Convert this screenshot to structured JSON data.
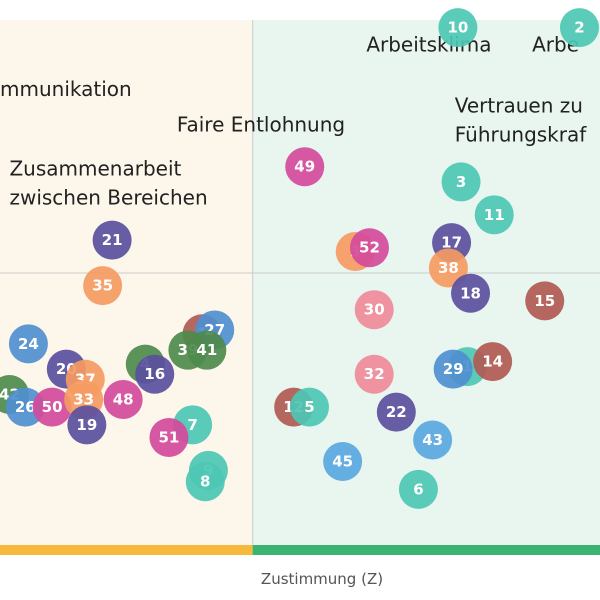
{
  "chart_data": {
    "type": "scatter",
    "title": "",
    "xlabel": "Zustimmung (Z)",
    "ylabel": "",
    "grid": true,
    "xlim": [
      -9,
      29
    ],
    "ylim": [
      -21.5,
      20
    ],
    "x_divider": 7,
    "y_divider": 0,
    "zones": [
      {
        "from": -9,
        "to": 7,
        "fill": "#fdf6ea",
        "bar": "#f6b93b"
      },
      {
        "from": 7,
        "to": 29,
        "fill": "#e8f6ef",
        "bar": "#3cb371"
      }
    ],
    "colors": {
      "teal": "#4dc7b4",
      "purple": "#5a4f9e",
      "orange": "#f59a62",
      "pink": "#d44a9b",
      "lightpink": "#ee8a98",
      "brown": "#b05a52",
      "blue": "#4f8fd0",
      "green": "#4e8a4c",
      "skyblue": "#59a7df",
      "skyblue2": "#6aa2e4"
    },
    "points": [
      {
        "id": "10",
        "x": 20,
        "y": 19.4,
        "color": "teal"
      },
      {
        "id": "2",
        "x": 27.7,
        "y": 19.4,
        "color": "teal"
      },
      {
        "id": "49",
        "x": 10.3,
        "y": 8.4,
        "color": "pink"
      },
      {
        "id": "3",
        "x": 20.2,
        "y": 7.2,
        "color": "teal"
      },
      {
        "id": "11",
        "x": 22.3,
        "y": 4.6,
        "color": "teal"
      },
      {
        "id": "21",
        "x": -1.9,
        "y": 2.6,
        "color": "purple"
      },
      {
        "id": "17",
        "x": 19.6,
        "y": 2.4,
        "color": "purple"
      },
      {
        "id": "3",
        "x": 13.5,
        "y": 1.7,
        "color": "orange"
      },
      {
        "id": "52",
        "x": 14.4,
        "y": 2.0,
        "color": "pink"
      },
      {
        "id": "38",
        "x": 19.4,
        "y": 0.4,
        "color": "orange"
      },
      {
        "id": "35",
        "x": -2.5,
        "y": -1.0,
        "color": "orange"
      },
      {
        "id": "18",
        "x": 20.8,
        "y": -1.6,
        "color": "purple"
      },
      {
        "id": "15",
        "x": 25.5,
        "y": -2.2,
        "color": "brown"
      },
      {
        "id": "30",
        "x": 14.7,
        "y": -2.9,
        "color": "lightpink"
      },
      {
        "id": "1",
        "x": 3.8,
        "y": -4.8,
        "color": "brown"
      },
      {
        "id": "27",
        "x": 4.6,
        "y": -4.5,
        "color": "blue"
      },
      {
        "id": "24",
        "x": -7.2,
        "y": -5.6,
        "color": "blue"
      },
      {
        "id": "39",
        "x": 2.9,
        "y": -6.1,
        "color": "green"
      },
      {
        "id": "41",
        "x": 4.1,
        "y": -6.1,
        "color": "green"
      },
      {
        "id": "20",
        "x": -4.8,
        "y": -7.6,
        "color": "purple"
      },
      {
        "id": "4",
        "x": 0.2,
        "y": -7.2,
        "color": "green"
      },
      {
        "id": "16",
        "x": 0.8,
        "y": -8.0,
        "color": "purple"
      },
      {
        "id": "37",
        "x": -3.6,
        "y": -8.4,
        "color": "orange"
      },
      {
        "id": "32",
        "x": 14.7,
        "y": -8.0,
        "color": "lightpink"
      },
      {
        "id": "1",
        "x": 20.6,
        "y": -7.4,
        "color": "teal"
      },
      {
        "id": "29",
        "x": 19.7,
        "y": -7.6,
        "color": "blue"
      },
      {
        "id": "14",
        "x": 22.2,
        "y": -7.0,
        "color": "brown"
      },
      {
        "id": "42",
        "x": -8.4,
        "y": -9.6,
        "color": "green"
      },
      {
        "id": "26",
        "x": -7.4,
        "y": -10.6,
        "color": "blue"
      },
      {
        "id": "50",
        "x": -5.7,
        "y": -10.6,
        "color": "pink"
      },
      {
        "id": "33",
        "x": -3.7,
        "y": -10.0,
        "color": "orange"
      },
      {
        "id": "48",
        "x": -1.2,
        "y": -10.0,
        "color": "pink"
      },
      {
        "id": "19",
        "x": -3.5,
        "y": -12.0,
        "color": "purple"
      },
      {
        "id": "12",
        "x": 9.6,
        "y": -10.6,
        "color": "brown"
      },
      {
        "id": "5",
        "x": 10.6,
        "y": -10.6,
        "color": "teal"
      },
      {
        "id": "22",
        "x": 16.1,
        "y": -11.0,
        "color": "purple"
      },
      {
        "id": "7",
        "x": 3.2,
        "y": -12.0,
        "color": "teal"
      },
      {
        "id": "51",
        "x": 1.7,
        "y": -13.0,
        "color": "pink"
      },
      {
        "id": "43",
        "x": 18.4,
        "y": -13.2,
        "color": "skyblue"
      },
      {
        "id": "45",
        "x": 12.7,
        "y": -14.9,
        "color": "skyblue"
      },
      {
        "id": "9",
        "x": 4.2,
        "y": -15.6,
        "color": "teal"
      },
      {
        "id": "8",
        "x": 4.0,
        "y": -16.5,
        "color": "teal"
      },
      {
        "id": "6",
        "x": 17.5,
        "y": -17.1,
        "color": "teal"
      }
    ],
    "annotations": [
      {
        "lines": [
          "Arbeitsklima"
        ],
        "x": 14.2,
        "y": 17.5
      },
      {
        "lines": [
          "Arbe"
        ],
        "x": 24.7,
        "y": 17.5
      },
      {
        "lines": [
          "mmunikation"
        ],
        "x": -9,
        "y": 14.0
      },
      {
        "lines": [
          "Faire Entlohnung"
        ],
        "x": 2.2,
        "y": 11.2
      },
      {
        "lines": [
          "Vertrauen zu",
          "Führungskraf"
        ],
        "x": 19.8,
        "y": 12.7
      },
      {
        "lines": [
          "Zusammenarbeit",
          "zwischen Bereichen"
        ],
        "x": -8.4,
        "y": 7.7
      }
    ]
  }
}
